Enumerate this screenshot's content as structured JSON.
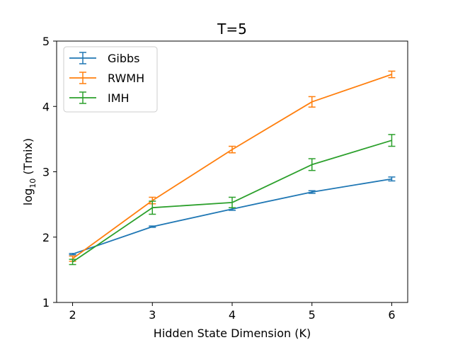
{
  "chart_data": {
    "type": "line",
    "title": "T=5",
    "xlabel": "Hidden State Dimension (K)",
    "ylabel_prefix": "log",
    "ylabel_sub": "10",
    "ylabel_suffix": " (Tmix)",
    "x": [
      2,
      3,
      4,
      5,
      6
    ],
    "xlim": [
      1.8,
      6.2
    ],
    "ylim": [
      1,
      5
    ],
    "xticks": [
      2,
      3,
      4,
      5,
      6
    ],
    "yticks": [
      1,
      2,
      3,
      4,
      5
    ],
    "grid": false,
    "legend_position": "top-left",
    "series": [
      {
        "name": "Gibbs",
        "color": "#1f77b4",
        "values": [
          1.74,
          2.16,
          2.43,
          2.69,
          2.89
        ],
        "errors": [
          0.01,
          0.01,
          0.02,
          0.02,
          0.03
        ]
      },
      {
        "name": "RWMH",
        "color": "#ff7f0e",
        "values": [
          1.67,
          2.56,
          3.34,
          4.07,
          4.49
        ],
        "errors": [
          0.04,
          0.05,
          0.05,
          0.08,
          0.05
        ]
      },
      {
        "name": "IMH",
        "color": "#2ca02c",
        "values": [
          1.62,
          2.45,
          2.53,
          3.11,
          3.48
        ],
        "errors": [
          0.04,
          0.1,
          0.08,
          0.09,
          0.09
        ]
      }
    ]
  }
}
